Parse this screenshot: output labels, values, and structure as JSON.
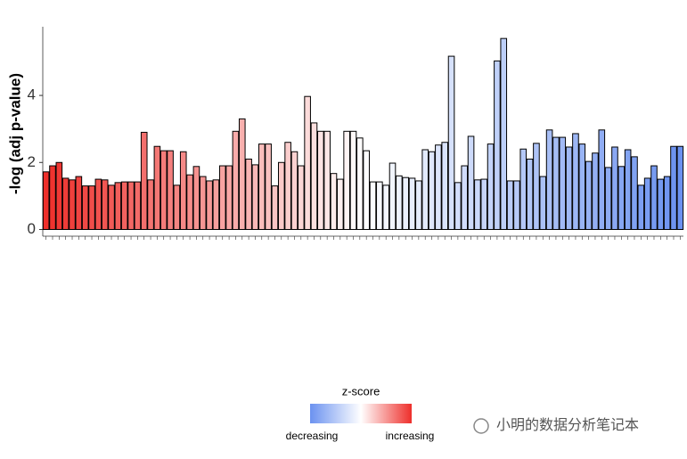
{
  "chart_data": {
    "type": "bar",
    "y_label": "-log (adj p-value)",
    "categories": [
      null,
      null,
      null,
      null,
      null,
      null,
      null,
      null,
      null,
      null,
      null,
      null,
      null,
      null,
      null,
      null,
      null,
      null,
      null,
      null,
      null,
      null,
      null,
      null,
      null,
      null,
      null,
      null,
      null,
      null,
      null,
      null,
      null,
      null,
      null,
      null,
      null,
      null,
      null,
      null,
      null,
      null,
      null,
      null,
      null,
      null,
      null,
      null,
      null,
      null,
      null,
      null,
      null,
      null,
      null,
      null,
      null,
      null,
      null,
      null,
      null,
      null,
      null,
      null,
      null,
      null,
      null,
      null,
      null,
      null,
      null,
      null,
      null,
      null,
      null,
      null,
      null,
      null,
      null,
      null,
      null,
      null,
      null,
      null,
      null,
      null,
      null,
      null,
      null,
      null,
      null,
      null,
      null,
      null,
      null,
      null,
      null,
      null
    ],
    "values": [
      1.72,
      1.9,
      2.0,
      1.53,
      1.48,
      1.58,
      1.3,
      1.3,
      1.5,
      1.48,
      1.32,
      1.4,
      1.42,
      1.42,
      1.42,
      2.9,
      1.48,
      2.48,
      2.35,
      2.35,
      1.32,
      2.32,
      1.63,
      1.88,
      1.58,
      1.45,
      1.48,
      1.9,
      1.9,
      2.93,
      3.3,
      2.1,
      1.93,
      2.55,
      2.55,
      1.3,
      2.0,
      2.6,
      2.32,
      1.9,
      3.97,
      3.18,
      2.93,
      2.93,
      1.67,
      1.5,
      2.93,
      2.93,
      2.73,
      2.35,
      1.42,
      1.42,
      1.32,
      1.98,
      1.6,
      1.55,
      1.53,
      1.45,
      2.38,
      2.32,
      2.52,
      2.6,
      5.17,
      1.4,
      1.9,
      2.78,
      1.48,
      1.5,
      2.55,
      5.03,
      5.7,
      1.45,
      1.45,
      2.4,
      2.1,
      2.57,
      1.58,
      2.97,
      2.75,
      2.75,
      2.46,
      2.86,
      2.55,
      2.03,
      2.28,
      2.97,
      1.85,
      2.46,
      1.88,
      2.38,
      2.17,
      1.32,
      1.53,
      1.9,
      1.5,
      1.58,
      2.48,
      2.48
    ],
    "color_scale": {
      "high": "#ee2f2b",
      "mid": "#ffffff",
      "low": "#6b92f0"
    },
    "ylim": [
      -0.2,
      6.05
    ],
    "yticks": [
      0,
      2,
      4
    ],
    "legend": {
      "title": "z-score",
      "low_label": "decreasing",
      "high_label": "increasing"
    },
    "watermark": "小明的数据分析笔记本"
  }
}
